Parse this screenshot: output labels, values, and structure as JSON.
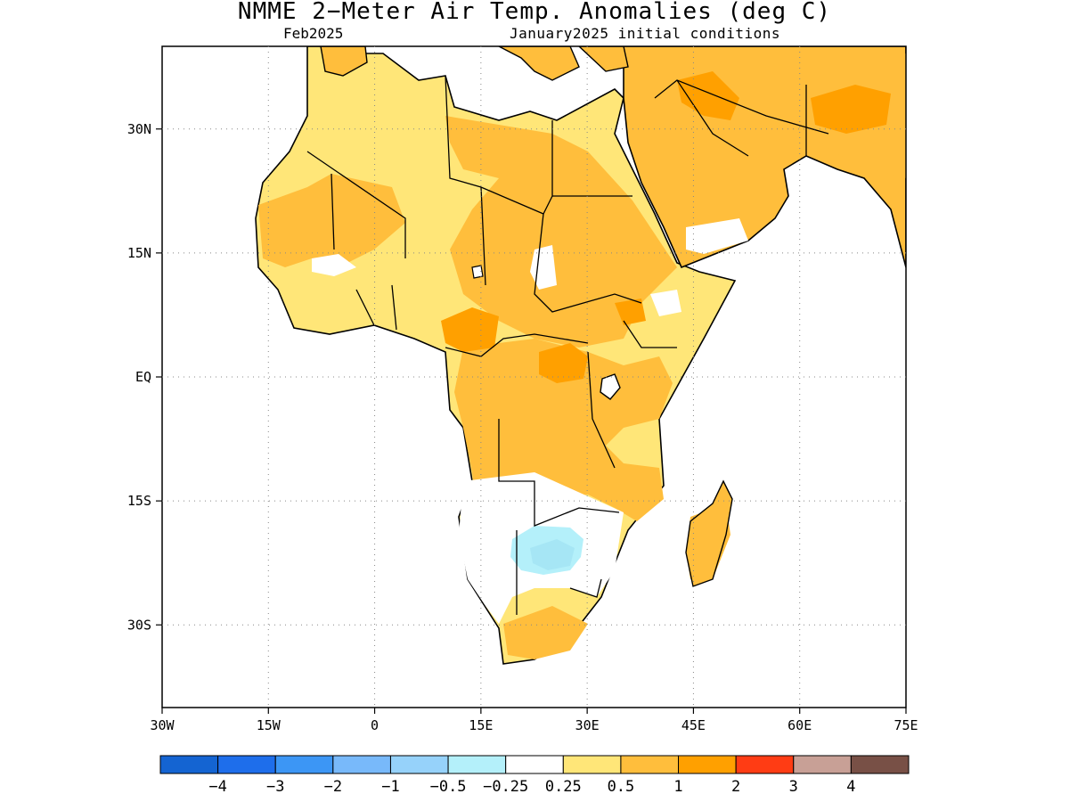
{
  "title": "NMME 2−Meter Air Temp. Anomalies (deg C)",
  "subtitle_left": "Feb2025",
  "subtitle_right": "January2025 initial conditions",
  "map": {
    "lon_range": [
      -30,
      75
    ],
    "lat_range": [
      -40,
      40
    ],
    "lon_ticks": [
      {
        "value": -30,
        "label": "30W"
      },
      {
        "value": -15,
        "label": "15W"
      },
      {
        "value": 0,
        "label": "0"
      },
      {
        "value": 15,
        "label": "15E"
      },
      {
        "value": 30,
        "label": "30E"
      },
      {
        "value": 45,
        "label": "45E"
      },
      {
        "value": 60,
        "label": "60E"
      },
      {
        "value": 75,
        "label": "75E"
      }
    ],
    "lat_ticks": [
      {
        "value": 30,
        "label": "30N"
      },
      {
        "value": 15,
        "label": "15N"
      },
      {
        "value": 0,
        "label": "EQ"
      },
      {
        "value": -15,
        "label": "15S"
      },
      {
        "value": -30,
        "label": "30S"
      }
    ],
    "gridlines": true
  },
  "colorbar": {
    "colors": [
      "#1464d2",
      "#1e6eeb",
      "#3c96f5",
      "#78b9fa",
      "#96d2fa",
      "#b4f0fa",
      "#ffffff",
      "#ffe678",
      "#ffbe3c",
      "#ffa000",
      "#ff3c14",
      "#c8a096",
      "#785046"
    ],
    "labels": [
      "−4",
      "−3",
      "−2",
      "−1",
      "−0.5",
      "−0.25",
      "0.25",
      "0.5",
      "1",
      "2",
      "3",
      "4"
    ]
  }
}
